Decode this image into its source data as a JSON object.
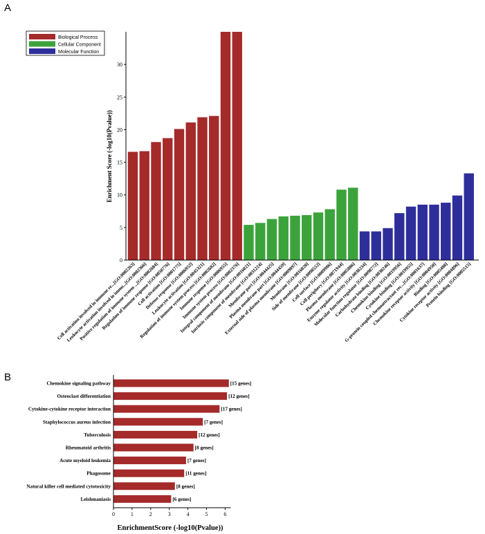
{
  "chart_data": [
    {
      "panel": "A",
      "type": "bar",
      "ylabel": "Enrichment Score (-log10(Pvalue))",
      "ylim": [
        0,
        35
      ],
      "yticks": [
        0,
        5,
        10,
        15,
        20,
        25,
        30
      ],
      "grid": false,
      "legend": {
        "placement": "top-left",
        "entries": [
          {
            "name": "Biological Process",
            "color": "#a52a2a"
          },
          {
            "name": "Cellular Component",
            "color": "#3ca33c"
          },
          {
            "name": "Molecular Function",
            "color": "#2e2e9b"
          }
        ]
      },
      "categories": [
        "Cell activation involved in immune re...[GO:0002263]",
        "Leukocyte activation involved in immu...[GO:0002366]",
        "Positive regulation of immune system ...[GO:0002684]",
        "Regulation of immune response [GO:0050776]",
        "Cell activation [GO:0001775]",
        "Defense response [GO:0006952]",
        "Leukocyte activation [GO:0045321]",
        "Regulation of immune system process [GO:0002682]",
        "Immune response [GO:0006955]",
        "Immune system process [GO:0002376]",
        "Integral component of membrane [GO:0016021]",
        "Intrinsic component of membrane [GO:0031224]",
        "Membrane part [GO:0044425]",
        "Plasma membrane part [GO:0044459]",
        "External side of plasma membrane [GO:0009897]",
        "Membrane [GO:0016020]",
        "Side of membrane [GO:0098552]",
        "Cell surface [GO:0009986]",
        "Cell periphery [GO:0071944]",
        "Plasma membrane [GO:0005886]",
        "Enzyme regulator activity [GO:0030234]",
        "Molecular function regulator [GO:0098772]",
        "Carbohydrate binding [GO:0030246]",
        "Chemokine binding [GO:0019956]",
        "Cytokine binding [GO:0019955]",
        "G-protein coupled chemoattractant rec...[GO:0001637]",
        "Chemokine receptor activity [GO:0004950]",
        "Binding [GO:0005488]",
        "Cytokine receptor activity [GO:0004896]",
        "Protein binding [GO:0005515]"
      ],
      "groups": [
        "Biological Process",
        "Biological Process",
        "Biological Process",
        "Biological Process",
        "Biological Process",
        "Biological Process",
        "Biological Process",
        "Biological Process",
        "Biological Process",
        "Biological Process",
        "Cellular Component",
        "Cellular Component",
        "Cellular Component",
        "Cellular Component",
        "Cellular Component",
        "Cellular Component",
        "Cellular Component",
        "Cellular Component",
        "Cellular Component",
        "Cellular Component",
        "Molecular Function",
        "Molecular Function",
        "Molecular Function",
        "Molecular Function",
        "Molecular Function",
        "Molecular Function",
        "Molecular Function",
        "Molecular Function",
        "Molecular Function",
        "Molecular Function"
      ],
      "values": [
        16.6,
        16.7,
        18.1,
        18.7,
        20.1,
        21.1,
        21.9,
        22.1,
        35,
        35,
        5.4,
        5.7,
        6.3,
        6.7,
        6.8,
        6.9,
        7.3,
        7.8,
        10.8,
        11.1,
        4.4,
        4.4,
        4.9,
        7.2,
        8.2,
        8.5,
        8.5,
        8.8,
        9.9,
        13.3
      ]
    },
    {
      "panel": "B",
      "type": "bar",
      "orientation": "horizontal",
      "xlabel": "EnrichmentScore (-log10(Pvalue))",
      "xlim": [
        0,
        6.3
      ],
      "xticks": [
        0,
        1,
        2,
        3,
        4,
        5,
        6
      ],
      "color": "#a52a2a",
      "categories": [
        "Chemokine signaling pathway",
        "Osteoclast differentiation",
        "Cytokine-cytokine receptor interaction",
        "Staphylococcus aureus infection",
        "Tuberculosis",
        "Rheumatoid arthritis",
        "Acute myeloid leukemia",
        "Phagosome",
        "Natural killer cell mediated cytotoxicity",
        "Leishmaniasis"
      ],
      "values": [
        6.2,
        6.1,
        5.7,
        4.8,
        4.5,
        4.3,
        3.9,
        3.8,
        3.3,
        3.1
      ],
      "labels": [
        "[15 genes]",
        "[12 genes]",
        "[17 genes]",
        "[7 genes]",
        "[12 genes]",
        "[8 genes]",
        "[7 genes]",
        "[11 genes]",
        "[8 genes]",
        "[6 genes]"
      ]
    }
  ],
  "panels": {
    "a": "A",
    "b": "B"
  }
}
